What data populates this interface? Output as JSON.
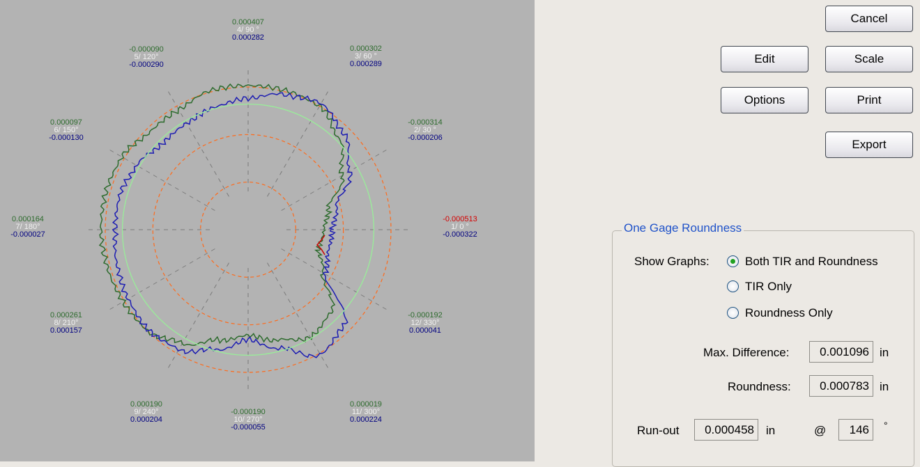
{
  "chart_data": {
    "type": "polar",
    "scale_rings": 3,
    "spokes_deg": [
      0,
      30,
      60,
      90,
      120,
      150,
      180,
      210,
      240,
      270,
      300,
      330
    ],
    "point_labels": [
      {
        "index_angle": "1/ 0 °",
        "top": "-0.000513",
        "bottom": "-0.000322",
        "highlight": true
      },
      {
        "index_angle": "2/ 30 °",
        "top": "-0.000314",
        "bottom": "-0.000206"
      },
      {
        "index_angle": "3/ 60 °",
        "top": "0.000302",
        "bottom": "0.000289"
      },
      {
        "index_angle": "4/ 90 °",
        "top": "0.000407",
        "bottom": "0.000282"
      },
      {
        "index_angle": "5/ 120°",
        "top": "-0.000090",
        "bottom": "-0.000290"
      },
      {
        "index_angle": "6/ 150°",
        "top": "0.000097",
        "bottom": "-0.000130"
      },
      {
        "index_angle": "7/ 180°",
        "top": "0.000164",
        "bottom": "-0.000027"
      },
      {
        "index_angle": "8/ 210°",
        "top": "0.000261",
        "bottom": "0.000157"
      },
      {
        "index_angle": "9/ 240°",
        "top": "0.000190",
        "bottom": "0.000204"
      },
      {
        "index_angle": "10/ 270°",
        "top": "-0.000190",
        "bottom": "-0.000055"
      },
      {
        "index_angle": "11/ 300°",
        "top": "0.000019",
        "bottom": "0.000224"
      },
      {
        "index_angle": "12/ 330°",
        "top": "-0.000192",
        "bottom": "0.000041"
      }
    ],
    "series": [
      {
        "color": "#2d6b2d",
        "angles_deg": [
          0,
          15,
          30,
          45,
          60,
          75,
          90,
          105,
          120,
          135,
          150,
          165,
          180,
          195,
          210,
          225,
          240,
          255,
          270,
          285,
          300,
          315,
          330,
          345
        ],
        "radius_fraction": [
          0.53,
          0.58,
          0.76,
          0.9,
          1.0,
          1.01,
          1.01,
          1.01,
          0.97,
          0.97,
          1.02,
          1.03,
          1.03,
          1.02,
          1.01,
          1.0,
          0.92,
          0.8,
          0.74,
          0.8,
          0.87,
          0.82,
          0.6,
          0.51
        ]
      },
      {
        "color": "#1c1cb2",
        "angles_deg": [
          0,
          15,
          30,
          45,
          60,
          75,
          90,
          105,
          120,
          135,
          150,
          165,
          180,
          195,
          210,
          225,
          240,
          255,
          270,
          285,
          300,
          315,
          330,
          345
        ],
        "radius_fraction": [
          0.59,
          0.64,
          0.82,
          0.95,
          1.02,
          0.98,
          0.92,
          0.89,
          0.86,
          0.85,
          0.9,
          0.93,
          0.93,
          0.95,
          0.97,
          0.99,
          0.97,
          0.87,
          0.77,
          0.86,
          1.01,
          0.95,
          0.62,
          0.58
        ]
      },
      {
        "color": "#99ee99",
        "type": "circle",
        "radius_fraction": 0.88
      }
    ],
    "highlight_segment_color": "#cc0000"
  },
  "buttons": {
    "cancel": "Cancel",
    "edit": "Edit",
    "scale": "Scale",
    "options": "Options",
    "print": "Print",
    "export": "Export"
  },
  "group_title": "One Gage Roundness",
  "show_graphs_label": "Show Graphs:",
  "radios": [
    {
      "label": "Both TIR and Roundness",
      "checked": true
    },
    {
      "label": "TIR Only",
      "checked": false
    },
    {
      "label": "Roundness Only",
      "checked": false
    }
  ],
  "max_difference_label": "Max. Difference:",
  "max_difference_value": "0.001096",
  "roundness_label": "Roundness:",
  "roundness_value": "0.000783",
  "runout_label": "Run-out",
  "runout_value": "0.000458",
  "unit": "in",
  "at_symbol": "@",
  "angle_value": "146",
  "degree_symbol": "°",
  "colors": {
    "plot_bg": "#b3b3b3",
    "ring": "#ff6a1a",
    "spoke": "#7a7a7a",
    "label_top": "#2d6b2d",
    "label_mid": "#f2f2f2",
    "label_bottom": "#000080",
    "highlight": "#d40000"
  }
}
